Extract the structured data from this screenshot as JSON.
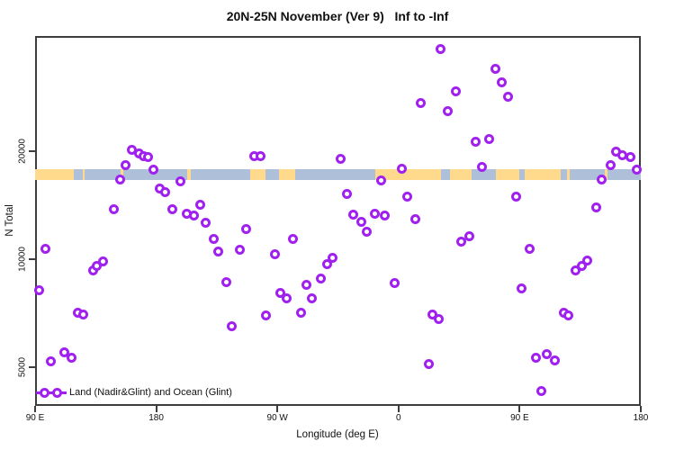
{
  "title": "20N-25N November (Ver 9)   Inf to -Inf",
  "legend": {
    "label": "Land (Nadir&Glint) and Ocean (Glint)"
  },
  "colors": {
    "marker": "#a020f0",
    "land": "#ffd98c",
    "ocean": "#aebfd9",
    "axis": "#3d3d3d"
  },
  "chart_data": {
    "type": "scatter",
    "title": "20N-25N November (Ver 9)   Inf to -Inf",
    "xlabel": "Longitude (deg E)",
    "ylabel": "N Total",
    "x_axis_note": "axis spans 450 degrees starting at 90E; lon values are axis coordinates (deg E, wrapping past 360)",
    "x_axis_range": [
      90,
      540
    ],
    "x_ticks": [
      {
        "lon": 90,
        "label": "90 E"
      },
      {
        "lon": 180,
        "label": "180"
      },
      {
        "lon": 270,
        "label": "90 W"
      },
      {
        "lon": 360,
        "label": "0"
      },
      {
        "lon": 450,
        "label": "90 E"
      },
      {
        "lon": 540,
        "label": "180"
      }
    ],
    "y_scale": "log",
    "y_range": [
      3900,
      42500
    ],
    "y_ticks": [
      {
        "value": 5000,
        "label": "5000"
      },
      {
        "value": 10000,
        "label": "10000"
      },
      {
        "value": 20000,
        "label": "20000"
      }
    ],
    "grid": false,
    "legend_position": "bottom-left",
    "map_band": {
      "n_top": 17800,
      "n_bottom": 16600,
      "segments": [
        {
          "from": 90,
          "to": 119,
          "type": "land"
        },
        {
          "from": 119,
          "to": 125.5,
          "type": "ocean"
        },
        {
          "from": 125.5,
          "to": 127,
          "type": "land"
        },
        {
          "from": 127,
          "to": 153.5,
          "type": "ocean"
        },
        {
          "from": 153.5,
          "to": 155.5,
          "type": "land"
        },
        {
          "from": 155.5,
          "to": 203,
          "type": "ocean"
        },
        {
          "from": 203,
          "to": 205.5,
          "type": "land"
        },
        {
          "from": 205.5,
          "to": 249.5,
          "type": "ocean"
        },
        {
          "from": 249.5,
          "to": 261,
          "type": "land"
        },
        {
          "from": 261,
          "to": 271,
          "type": "ocean"
        },
        {
          "from": 271,
          "to": 283,
          "type": "land"
        },
        {
          "from": 283,
          "to": 342.5,
          "type": "ocean"
        },
        {
          "from": 342.5,
          "to": 391.5,
          "type": "land"
        },
        {
          "from": 391.5,
          "to": 398,
          "type": "ocean"
        },
        {
          "from": 398,
          "to": 414,
          "type": "land"
        },
        {
          "from": 414,
          "to": 432.5,
          "type": "ocean"
        },
        {
          "from": 432.5,
          "to": 449.5,
          "type": "land"
        },
        {
          "from": 449.5,
          "to": 453.5,
          "type": "ocean"
        },
        {
          "from": 453.5,
          "to": 480.5,
          "type": "land"
        },
        {
          "from": 480.5,
          "to": 485.5,
          "type": "ocean"
        },
        {
          "from": 485.5,
          "to": 487.5,
          "type": "land"
        },
        {
          "from": 487.5,
          "to": 513.5,
          "type": "ocean"
        },
        {
          "from": 513.5,
          "to": 515.5,
          "type": "land"
        },
        {
          "from": 515.5,
          "to": 540,
          "type": "ocean"
        }
      ]
    },
    "series": [
      {
        "name": "Land (Nadir&Glint) and Ocean (Glint)",
        "marker": "open-circle",
        "points": [
          {
            "lon": 92.7,
            "n": 8200
          },
          {
            "lon": 97.4,
            "n": 10700
          },
          {
            "lon": 102,
            "n": 5200
          },
          {
            "lon": 112,
            "n": 5500
          },
          {
            "lon": 117.4,
            "n": 5300
          },
          {
            "lon": 122,
            "n": 7100
          },
          {
            "lon": 126,
            "n": 7000
          },
          {
            "lon": 132.8,
            "n": 9300
          },
          {
            "lon": 136,
            "n": 9550
          },
          {
            "lon": 140.8,
            "n": 9830
          },
          {
            "lon": 148.8,
            "n": 13800
          },
          {
            "lon": 152.9,
            "n": 16700
          },
          {
            "lon": 157.5,
            "n": 18300
          },
          {
            "lon": 162.2,
            "n": 20200
          },
          {
            "lon": 166.9,
            "n": 19700
          },
          {
            "lon": 170.9,
            "n": 19400
          },
          {
            "lon": 174.2,
            "n": 19300
          },
          {
            "lon": 177.6,
            "n": 17800
          },
          {
            "lon": 182.3,
            "n": 15700
          },
          {
            "lon": 186.3,
            "n": 15400
          },
          {
            "lon": 192.3,
            "n": 13800
          },
          {
            "lon": 197.7,
            "n": 16500
          },
          {
            "lon": 203,
            "n": 13400
          },
          {
            "lon": 207.7,
            "n": 13200
          },
          {
            "lon": 212.4,
            "n": 14200
          },
          {
            "lon": 216.4,
            "n": 12600
          },
          {
            "lon": 222.4,
            "n": 11400
          },
          {
            "lon": 226.4,
            "n": 10500
          },
          {
            "lon": 231.8,
            "n": 8650
          },
          {
            "lon": 236.4,
            "n": 6500
          },
          {
            "lon": 241.8,
            "n": 10650
          },
          {
            "lon": 247.1,
            "n": 12100
          },
          {
            "lon": 252.5,
            "n": 19400
          },
          {
            "lon": 257.2,
            "n": 19400
          },
          {
            "lon": 261.8,
            "n": 6950
          },
          {
            "lon": 267.9,
            "n": 10350
          },
          {
            "lon": 271.9,
            "n": 8030
          },
          {
            "lon": 277.2,
            "n": 7800
          },
          {
            "lon": 281.9,
            "n": 11400
          },
          {
            "lon": 287.3,
            "n": 7100
          },
          {
            "lon": 291.9,
            "n": 8460
          },
          {
            "lon": 295.3,
            "n": 7760
          },
          {
            "lon": 302,
            "n": 8810
          },
          {
            "lon": 307.3,
            "n": 9660
          },
          {
            "lon": 311.3,
            "n": 10100
          },
          {
            "lon": 317.3,
            "n": 19000
          },
          {
            "lon": 322,
            "n": 15200
          },
          {
            "lon": 326.7,
            "n": 13300
          },
          {
            "lon": 332.7,
            "n": 12700
          },
          {
            "lon": 336.7,
            "n": 11900
          },
          {
            "lon": 342.1,
            "n": 13400
          },
          {
            "lon": 346.8,
            "n": 16600
          },
          {
            "lon": 350.1,
            "n": 13200
          },
          {
            "lon": 356.8,
            "n": 8560
          },
          {
            "lon": 362.8,
            "n": 17900
          },
          {
            "lon": 366.8,
            "n": 14900
          },
          {
            "lon": 372.2,
            "n": 12900
          },
          {
            "lon": 376.2,
            "n": 27300
          },
          {
            "lon": 382.2,
            "n": 5100
          },
          {
            "lon": 385.5,
            "n": 7000
          },
          {
            "lon": 390.2,
            "n": 6800
          },
          {
            "lon": 390.9,
            "n": 38600
          },
          {
            "lon": 396.9,
            "n": 25800
          },
          {
            "lon": 402.3,
            "n": 29400
          },
          {
            "lon": 406.3,
            "n": 11200
          },
          {
            "lon": 412.3,
            "n": 11600
          },
          {
            "lon": 417,
            "n": 21200
          },
          {
            "lon": 421.7,
            "n": 18100
          },
          {
            "lon": 427,
            "n": 21600
          },
          {
            "lon": 431.7,
            "n": 34000
          },
          {
            "lon": 436.4,
            "n": 31200
          },
          {
            "lon": 441.7,
            "n": 28300
          },
          {
            "lon": 447.1,
            "n": 14900
          },
          {
            "lon": 451.7,
            "n": 8270
          },
          {
            "lon": 457.1,
            "n": 10700
          },
          {
            "lon": 461.8,
            "n": 5300
          },
          {
            "lon": 466.4,
            "n": 4300
          },
          {
            "lon": 470.4,
            "n": 5450
          },
          {
            "lon": 476.4,
            "n": 5230
          },
          {
            "lon": 482.5,
            "n": 7100
          },
          {
            "lon": 486.5,
            "n": 6950
          },
          {
            "lon": 491.8,
            "n": 9330
          },
          {
            "lon": 496.5,
            "n": 9550
          },
          {
            "lon": 500.5,
            "n": 9890
          },
          {
            "lon": 506.6,
            "n": 13900
          },
          {
            "lon": 510.6,
            "n": 16700
          },
          {
            "lon": 517.3,
            "n": 18300
          },
          {
            "lon": 521.3,
            "n": 20000
          },
          {
            "lon": 526.6,
            "n": 19500
          },
          {
            "lon": 532,
            "n": 19300
          },
          {
            "lon": 537.3,
            "n": 17800
          }
        ]
      }
    ]
  }
}
